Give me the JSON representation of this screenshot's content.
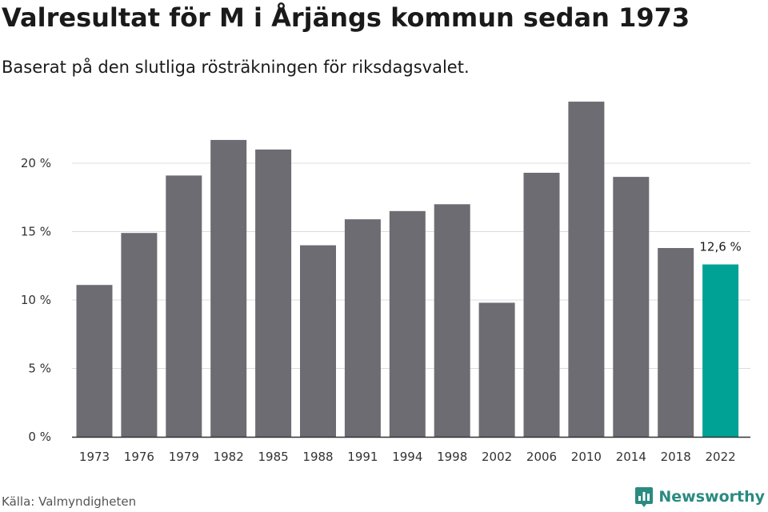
{
  "title": "Valresultat för M i Årjängs kommun sedan 1973",
  "subtitle": "Baserat på den slutliga rösträkningen för riksdagsvalet.",
  "source": "Källa: Valmyndigheten",
  "brand": {
    "name": "Newsworthy",
    "icon": "newsworthy-logo-icon",
    "color": "#2a8b80"
  },
  "colors": {
    "bar": "#6d6c72",
    "highlight": "#00a296",
    "grid": "#dcdcdc",
    "axis": "#333333"
  },
  "chart_data": {
    "type": "bar",
    "categories": [
      "1973",
      "1976",
      "1979",
      "1982",
      "1985",
      "1988",
      "1991",
      "1994",
      "1998",
      "2002",
      "2006",
      "2010",
      "2014",
      "2018",
      "2022"
    ],
    "values": [
      11.1,
      14.9,
      19.1,
      21.7,
      21.0,
      14.0,
      15.9,
      16.5,
      17.0,
      9.8,
      19.3,
      24.5,
      19.0,
      13.8,
      12.6
    ],
    "ylim": [
      0,
      25
    ],
    "yticks": [
      0,
      5,
      10,
      15,
      20
    ],
    "ytick_labels": [
      "0 %",
      "5 %",
      "10 %",
      "15 %",
      "20 %"
    ],
    "highlight_index": 14,
    "data_labels": [
      {
        "index": 14,
        "text": "12,6 %"
      }
    ],
    "grid": true,
    "xlabel": "",
    "ylabel": ""
  }
}
